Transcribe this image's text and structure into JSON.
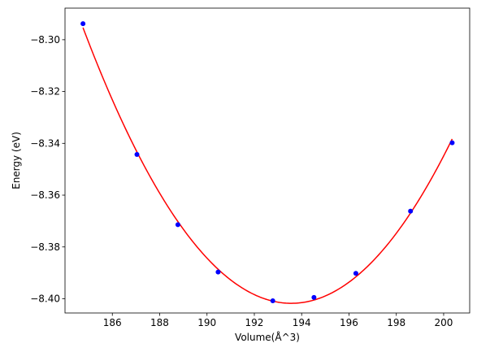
{
  "chart_data": {
    "type": "scatter",
    "title": "",
    "xlabel": "Volume(Å^3)",
    "ylabel": "Energy (eV)",
    "xlim": [
      184.0,
      201.1
    ],
    "ylim": [
      -8.4055,
      -8.2878
    ],
    "x_ticks": [
      186,
      188,
      190,
      192,
      194,
      196,
      198,
      200
    ],
    "x_tick_labels": [
      "186",
      "188",
      "190",
      "192",
      "194",
      "196",
      "198",
      "200"
    ],
    "y_ticks": [
      -8.3,
      -8.32,
      -8.34,
      -8.36,
      -8.38,
      -8.4
    ],
    "y_tick_labels": [
      "−8.30",
      "−8.32",
      "−8.34",
      "−8.36",
      "−8.38",
      "−8.40"
    ],
    "grid": false,
    "series": [
      {
        "kind": "scatter",
        "color": "#0000ff",
        "x": [
          184.76,
          187.04,
          188.77,
          190.47,
          192.78,
          194.52,
          196.29,
          198.6,
          200.36
        ],
        "y": [
          -8.2938,
          -8.3443,
          -8.3714,
          -8.3897,
          -8.4008,
          -8.3995,
          -8.3902,
          -8.3662,
          -8.3398
        ]
      },
      {
        "kind": "line",
        "color": "#ff0000",
        "fit": "quadratic",
        "x_range": [
          184.76,
          200.36
        ],
        "x": [
          184.76,
          186.0,
          188.0,
          190.0,
          192.0,
          193.3,
          195.0,
          197.0,
          199.0,
          200.36
        ],
        "y": [
          -8.2938,
          -8.3198,
          -8.357,
          -8.3836,
          -8.3982,
          -8.401,
          -8.3989,
          -8.3866,
          -8.3613,
          -8.3398
        ]
      }
    ]
  }
}
